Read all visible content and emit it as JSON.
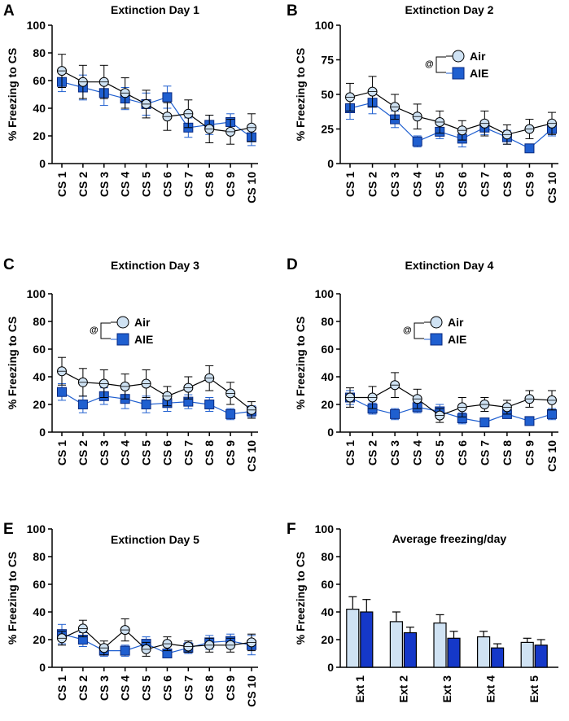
{
  "colors": {
    "air_fill": "#cfe2f3",
    "air_line": "#000000",
    "aie_fill": "#1f5fd0",
    "aie_line": "#1f5fd0",
    "bar_air": "#cfe2f3",
    "bar_aie": "#1538c9",
    "axis": "#000000"
  },
  "chart_data": [
    {
      "panel": "A",
      "type": "line",
      "title": "Extinction Day 1",
      "ylabel": "% Freezing to CS",
      "ylim": [
        0,
        100
      ],
      "yticks": [
        "0",
        "20",
        "40",
        "60",
        "80",
        "100"
      ],
      "categories": [
        "CS 1",
        "CS 2",
        "CS 3",
        "CS 4",
        "CS 5",
        "CS 6",
        "CS 7",
        "CS 8",
        "CS 9",
        "CS 10"
      ],
      "series": [
        {
          "name": "Air",
          "values": [
            67,
            59,
            59,
            51,
            43,
            34,
            36,
            25,
            23,
            26
          ],
          "errors": [
            12,
            12,
            12,
            11,
            10,
            10,
            10,
            10,
            9,
            10
          ]
        },
        {
          "name": "AIE",
          "values": [
            59,
            55,
            51,
            47,
            43,
            48,
            26,
            28,
            30,
            19
          ],
          "errors": [
            7,
            9,
            9,
            8,
            8,
            8,
            7,
            7,
            6,
            6
          ]
        }
      ],
      "legend": null
    },
    {
      "panel": "B",
      "type": "line",
      "title": "Extinction Day 2",
      "ylabel": "% Freezing to CS",
      "ylim": [
        0,
        100
      ],
      "yticks": [
        "0",
        "25",
        "50",
        "75",
        "100"
      ],
      "categories": [
        "CS 1",
        "CS 2",
        "CS 3",
        "CS 4",
        "CS 5",
        "CS 6",
        "CS 7",
        "CS 8",
        "CS 9",
        "CS 10"
      ],
      "series": [
        {
          "name": "Air",
          "values": [
            48,
            52,
            41,
            34,
            30,
            24,
            29,
            21,
            25,
            29
          ],
          "errors": [
            10,
            11,
            9,
            9,
            8,
            7,
            9,
            7,
            7,
            8
          ]
        },
        {
          "name": "AIE",
          "values": [
            40,
            44,
            32,
            16,
            23,
            18,
            26,
            19,
            11,
            25
          ],
          "errors": [
            8,
            8,
            6,
            4,
            5,
            6,
            5,
            5,
            3,
            5
          ]
        }
      ],
      "legend": {
        "significance": "@",
        "items": [
          "Air",
          "AIE"
        ]
      }
    },
    {
      "panel": "C",
      "type": "line",
      "title": "Extinction Day 3",
      "ylabel": "% Freezing to CS",
      "ylim": [
        0,
        100
      ],
      "yticks": [
        "0",
        "20",
        "40",
        "60",
        "80",
        "100"
      ],
      "categories": [
        "CS 1",
        "CS 2",
        "CS 3",
        "CS 4",
        "CS 5",
        "CS 6",
        "CS 7",
        "CS 8",
        "CS 9",
        "CS 10"
      ],
      "series": [
        {
          "name": "Air",
          "values": [
            44,
            36,
            35,
            33,
            35,
            26,
            32,
            39,
            28,
            16
          ],
          "errors": [
            10,
            10,
            10,
            9,
            10,
            7,
            8,
            9,
            8,
            6
          ]
        },
        {
          "name": "AIE",
          "values": [
            29,
            20,
            26,
            24,
            20,
            21,
            22,
            20,
            13,
            15
          ],
          "errors": [
            6,
            6,
            6,
            7,
            6,
            6,
            5,
            5,
            4,
            4
          ]
        }
      ],
      "legend": {
        "significance": "@",
        "items": [
          "Air",
          "AIE"
        ]
      }
    },
    {
      "panel": "D",
      "type": "line",
      "title": "Extinction Day 4",
      "ylabel": "% Freezing to CS",
      "ylim": [
        0,
        100
      ],
      "yticks": [
        "0",
        "20",
        "40",
        "60",
        "80",
        "100"
      ],
      "categories": [
        "CS 1",
        "CS 2",
        "CS 3",
        "CS 4",
        "CS 5",
        "CS 6",
        "CS 7",
        "CS 8",
        "CS 9",
        "CS 10"
      ],
      "series": [
        {
          "name": "Air",
          "values": [
            25,
            25,
            34,
            24,
            12,
            18,
            20,
            18,
            24,
            23
          ],
          "errors": [
            7,
            8,
            9,
            7,
            5,
            7,
            5,
            5,
            6,
            7
          ]
        },
        {
          "name": "AIE",
          "values": [
            25,
            17,
            13,
            18,
            15,
            10,
            7,
            13,
            8,
            13
          ],
          "errors": [
            5,
            4,
            4,
            4,
            5,
            4,
            2,
            3,
            2,
            4
          ]
        }
      ],
      "legend": {
        "significance": "@",
        "items": [
          "Air",
          "AIE"
        ]
      }
    },
    {
      "panel": "E",
      "type": "line",
      "title": "Extinction Day 5",
      "ylabel": "% Freezing to CS",
      "ylim": [
        0,
        100
      ],
      "yticks": [
        "0",
        "20",
        "40",
        "60",
        "80",
        "100"
      ],
      "categories": [
        "CS 1",
        "CS 2",
        "CS 3",
        "CS 4",
        "CS 5",
        "CS 6",
        "CS 7",
        "CS 8",
        "CS 9",
        "CS 10"
      ],
      "series": [
        {
          "name": "Air",
          "values": [
            21,
            28,
            14,
            27,
            13,
            17,
            15,
            16,
            16,
            18
          ],
          "errors": [
            5,
            6,
            5,
            8,
            5,
            5,
            4,
            5,
            5,
            6
          ]
        },
        {
          "name": "AIE",
          "values": [
            24,
            20,
            12,
            12,
            17,
            10,
            14,
            18,
            19,
            16
          ],
          "errors": [
            7,
            5,
            4,
            4,
            5,
            3,
            4,
            5,
            5,
            7
          ]
        }
      ],
      "legend": null
    },
    {
      "panel": "F",
      "type": "bar",
      "title": "Average freezing/day",
      "ylabel": "% Freezing to CS",
      "ylim": [
        0,
        100
      ],
      "yticks": [
        "0",
        "20",
        "40",
        "60",
        "80",
        "100"
      ],
      "categories": [
        "Ext 1",
        "Ext 2",
        "Ext 3",
        "Ext 4",
        "Ext 5"
      ],
      "series": [
        {
          "name": "Air",
          "values": [
            42,
            33,
            32,
            22,
            18
          ],
          "errors": [
            9,
            7,
            6,
            4,
            3
          ]
        },
        {
          "name": "AIE",
          "values": [
            40,
            25,
            21,
            14,
            16
          ],
          "errors": [
            9,
            4,
            5,
            3,
            4
          ]
        }
      ],
      "legend": null
    }
  ]
}
